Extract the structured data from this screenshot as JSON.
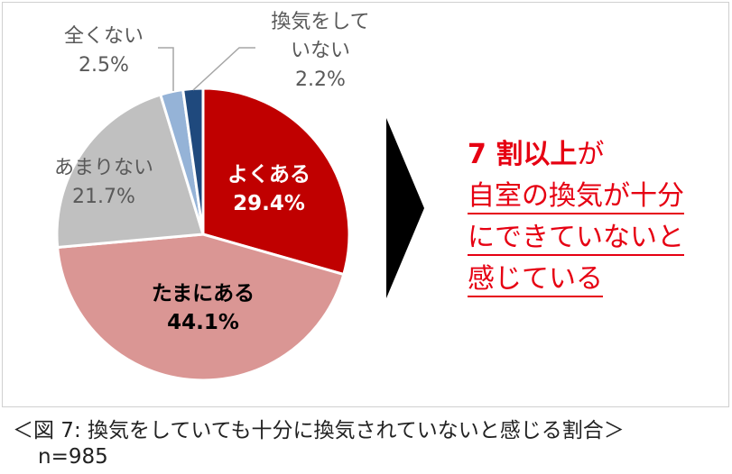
{
  "chart_data": {
    "type": "pie",
    "categories": [
      "よくある",
      "たまにある",
      "あまりない",
      "全くない",
      "換気をしていない"
    ],
    "values": [
      29.4,
      44.1,
      21.7,
      2.5,
      2.2
    ],
    "value_labels": [
      "29.4%",
      "44.1%",
      "21.7%",
      "2.5%",
      "2.2%"
    ],
    "colors": [
      "#c00000",
      "#da9694",
      "#c0c0c0",
      "#95b3d7",
      "#1f497d"
    ],
    "start": "12 o'clock",
    "direction": "clockwise"
  },
  "summary": {
    "emph": "7 割以上",
    "emph_tail": "が",
    "line2": "自室の換気が十分",
    "line3": "にできていないと",
    "line4": "感じている"
  },
  "caption": "＜図 7:  換気をしていても十分に換気されていないと感じる割合＞",
  "sample": "n=985",
  "label_lines": {
    "s0": [
      "よくある"
    ],
    "s1": [
      "たまにある"
    ],
    "s2": [
      "あまりない"
    ],
    "s3": [
      "全くない"
    ],
    "s4": [
      "換気をして",
      "いない"
    ]
  }
}
